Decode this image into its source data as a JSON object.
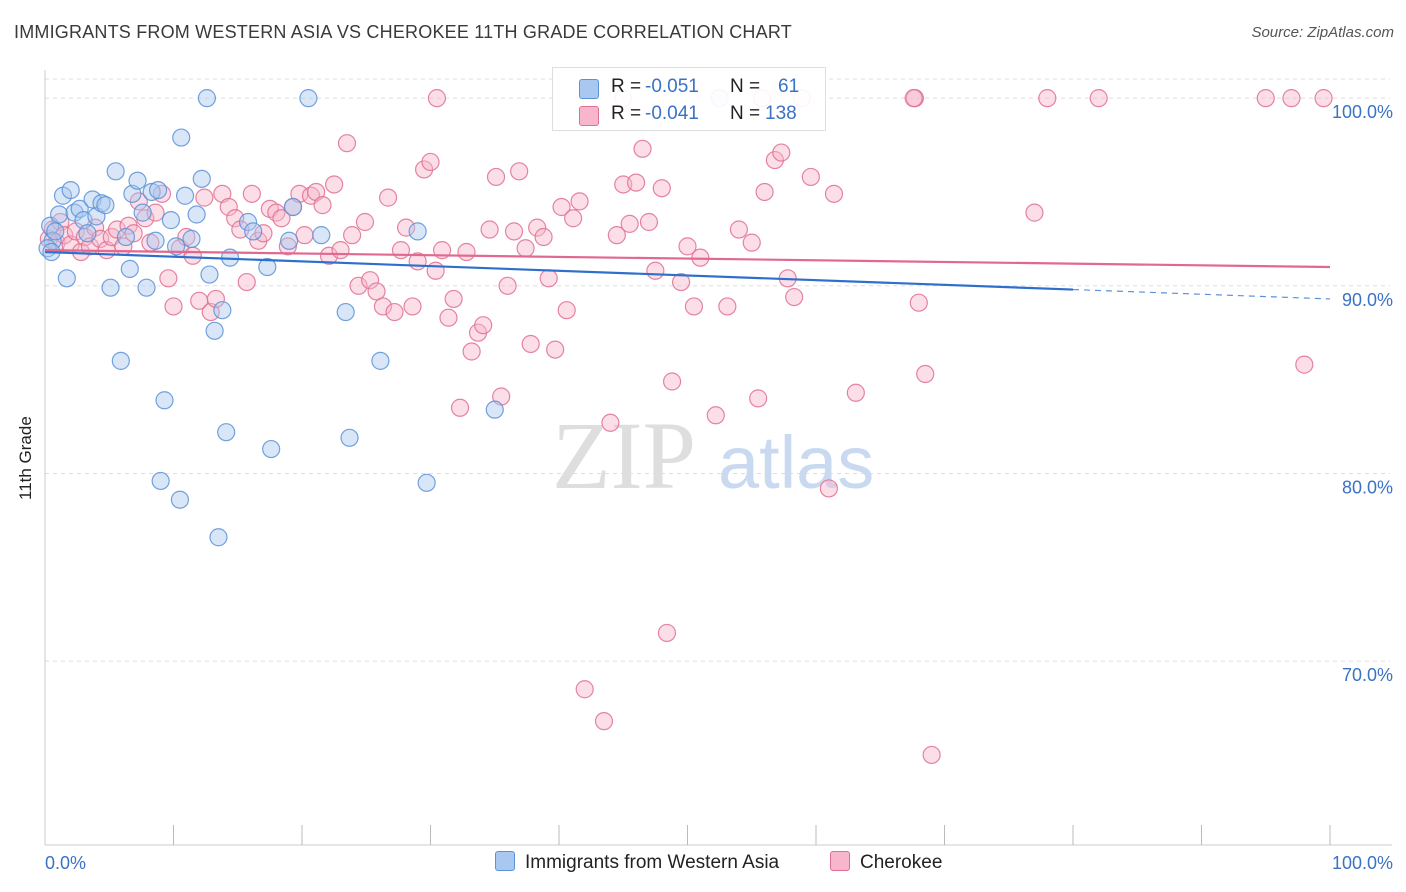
{
  "title": "IMMIGRANTS FROM WESTERN ASIA VS CHEROKEE 11TH GRADE CORRELATION CHART",
  "source": "Source: ZipAtlas.com",
  "watermark": {
    "zip": "ZIP",
    "atlas": "atlas"
  },
  "legend_top": [
    {
      "r_label": "R =",
      "r_value": "-0.051",
      "n_label": "N =",
      "n_value": "61",
      "color": "#a8c8f0"
    },
    {
      "r_label": "R =",
      "r_value": "-0.041",
      "n_label": "N =",
      "n_value": "138",
      "color": "#f7b6cc"
    }
  ],
  "legend_bottom": [
    {
      "label": "Immigrants from Western Asia",
      "color": "#a8c8f0"
    },
    {
      "label": "Cherokee",
      "color": "#f7b6cc"
    }
  ],
  "chart_data": {
    "type": "scatter",
    "title": "IMMIGRANTS FROM WESTERN ASIA VS CHEROKEE 11TH GRADE CORRELATION CHART",
    "xlabel": "",
    "ylabel": "11th Grade",
    "xlim": [
      0,
      100
    ],
    "ylim": [
      60.2,
      101.5
    ],
    "x_tick_labels": [
      "0.0%",
      "100.0%"
    ],
    "y_ticks": [
      70,
      80,
      90,
      100
    ],
    "y_tick_labels": [
      "70.0%",
      "80.0%",
      "90.0%",
      "100.0%"
    ],
    "grid": true,
    "legend_position": "top-center",
    "series": [
      {
        "name": "Immigrants from Western Asia",
        "color": "#5b92d8",
        "fill": "#a8c8f0",
        "trend": {
          "x": [
            0,
            80
          ],
          "y": [
            91.8,
            89.8
          ],
          "dash_to": [
            100,
            89.3
          ]
        },
        "points": [
          [
            0.4,
            93.2
          ],
          [
            0.6,
            92.4
          ],
          [
            0.8,
            92.9
          ],
          [
            1.1,
            93.8
          ],
          [
            1.4,
            94.8
          ],
          [
            1.7,
            90.4
          ],
          [
            2.0,
            95.1
          ],
          [
            2.3,
            93.9
          ],
          [
            2.7,
            94.1
          ],
          [
            3.0,
            93.5
          ],
          [
            3.3,
            92.8
          ],
          [
            3.7,
            94.6
          ],
          [
            4.0,
            93.7
          ],
          [
            4.4,
            94.4
          ],
          [
            4.7,
            94.3
          ],
          [
            5.1,
            89.9
          ],
          [
            5.5,
            96.1
          ],
          [
            5.9,
            86.0
          ],
          [
            6.3,
            92.6
          ],
          [
            6.6,
            90.9
          ],
          [
            6.8,
            94.9
          ],
          [
            7.2,
            95.6
          ],
          [
            7.6,
            93.9
          ],
          [
            7.9,
            89.9
          ],
          [
            8.3,
            95.0
          ],
          [
            8.6,
            92.4
          ],
          [
            8.8,
            95.1
          ],
          [
            9.0,
            79.6
          ],
          [
            9.3,
            83.9
          ],
          [
            9.8,
            93.5
          ],
          [
            10.2,
            92.1
          ],
          [
            10.5,
            78.6
          ],
          [
            10.6,
            97.9
          ],
          [
            10.9,
            94.8
          ],
          [
            11.4,
            92.5
          ],
          [
            11.8,
            93.8
          ],
          [
            12.2,
            95.7
          ],
          [
            12.6,
            100.0
          ],
          [
            12.8,
            90.6
          ],
          [
            13.2,
            87.6
          ],
          [
            13.5,
            76.6
          ],
          [
            13.8,
            88.7
          ],
          [
            14.1,
            82.2
          ],
          [
            14.4,
            91.5
          ],
          [
            15.8,
            93.4
          ],
          [
            16.2,
            92.9
          ],
          [
            17.3,
            91.0
          ],
          [
            17.6,
            81.3
          ],
          [
            19.0,
            92.4
          ],
          [
            19.3,
            94.2
          ],
          [
            20.5,
            100.0
          ],
          [
            21.5,
            92.7
          ],
          [
            23.4,
            88.6
          ],
          [
            23.7,
            81.9
          ],
          [
            26.1,
            86.0
          ],
          [
            29.0,
            92.9
          ],
          [
            29.7,
            79.5
          ],
          [
            35.0,
            83.4
          ],
          [
            52.5,
            100.0
          ],
          [
            0.2,
            92.0
          ],
          [
            0.5,
            91.8
          ]
        ]
      },
      {
        "name": "Cherokee",
        "color": "#e0708f",
        "fill": "#f7b6cc",
        "trend": {
          "x": [
            0,
            100
          ],
          "y": [
            91.9,
            91.0
          ]
        },
        "points": [
          [
            0.3,
            92.5
          ],
          [
            0.6,
            93.0
          ],
          [
            0.9,
            92.3
          ],
          [
            1.2,
            93.4
          ],
          [
            1.5,
            92.7
          ],
          [
            2.0,
            92.2
          ],
          [
            2.4,
            92.9
          ],
          [
            2.8,
            91.8
          ],
          [
            3.1,
            92.6
          ],
          [
            3.5,
            92.1
          ],
          [
            3.9,
            93.1
          ],
          [
            4.3,
            92.5
          ],
          [
            4.8,
            91.9
          ],
          [
            5.2,
            92.6
          ],
          [
            5.6,
            93.0
          ],
          [
            6.1,
            92.1
          ],
          [
            6.5,
            93.2
          ],
          [
            6.9,
            92.8
          ],
          [
            7.3,
            94.5
          ],
          [
            7.8,
            93.6
          ],
          [
            8.2,
            92.3
          ],
          [
            8.6,
            93.9
          ],
          [
            9.1,
            94.9
          ],
          [
            9.6,
            90.4
          ],
          [
            10.0,
            88.9
          ],
          [
            10.5,
            92.0
          ],
          [
            11.0,
            92.6
          ],
          [
            11.5,
            91.6
          ],
          [
            12.0,
            89.2
          ],
          [
            12.4,
            94.7
          ],
          [
            12.9,
            88.6
          ],
          [
            13.3,
            89.3
          ],
          [
            13.8,
            94.9
          ],
          [
            14.3,
            94.2
          ],
          [
            14.8,
            93.6
          ],
          [
            15.2,
            93.0
          ],
          [
            15.7,
            90.2
          ],
          [
            16.1,
            94.9
          ],
          [
            16.6,
            92.4
          ],
          [
            17.0,
            92.8
          ],
          [
            17.5,
            94.1
          ],
          [
            18.0,
            93.9
          ],
          [
            18.4,
            93.6
          ],
          [
            18.9,
            92.1
          ],
          [
            19.3,
            94.2
          ],
          [
            19.8,
            94.9
          ],
          [
            20.2,
            92.7
          ],
          [
            20.7,
            94.8
          ],
          [
            21.1,
            95.0
          ],
          [
            21.6,
            94.3
          ],
          [
            22.1,
            91.6
          ],
          [
            22.5,
            95.4
          ],
          [
            23.0,
            91.9
          ],
          [
            23.5,
            97.6
          ],
          [
            23.9,
            92.7
          ],
          [
            24.4,
            90.0
          ],
          [
            24.9,
            93.4
          ],
          [
            25.3,
            90.3
          ],
          [
            25.8,
            89.7
          ],
          [
            26.3,
            88.9
          ],
          [
            26.7,
            94.7
          ],
          [
            27.2,
            88.6
          ],
          [
            27.7,
            91.9
          ],
          [
            28.1,
            93.1
          ],
          [
            28.6,
            88.9
          ],
          [
            29.0,
            91.3
          ],
          [
            29.5,
            96.2
          ],
          [
            30.0,
            96.6
          ],
          [
            30.4,
            90.8
          ],
          [
            30.9,
            91.9
          ],
          [
            31.4,
            88.3
          ],
          [
            31.8,
            89.3
          ],
          [
            32.3,
            83.5
          ],
          [
            32.8,
            91.8
          ],
          [
            33.2,
            86.5
          ],
          [
            33.7,
            87.5
          ],
          [
            34.1,
            87.9
          ],
          [
            34.6,
            93.0
          ],
          [
            35.1,
            95.8
          ],
          [
            35.5,
            84.1
          ],
          [
            36.0,
            90.0
          ],
          [
            36.5,
            92.9
          ],
          [
            36.9,
            96.1
          ],
          [
            37.4,
            92.0
          ],
          [
            37.8,
            86.9
          ],
          [
            38.3,
            93.1
          ],
          [
            38.8,
            92.6
          ],
          [
            39.2,
            90.4
          ],
          [
            39.7,
            86.6
          ],
          [
            40.2,
            94.2
          ],
          [
            40.6,
            88.7
          ],
          [
            41.1,
            93.6
          ],
          [
            41.6,
            94.5
          ],
          [
            42.0,
            68.5
          ],
          [
            43.5,
            66.8
          ],
          [
            44.0,
            82.7
          ],
          [
            44.5,
            92.7
          ],
          [
            45.0,
            95.4
          ],
          [
            45.5,
            93.3
          ],
          [
            46.0,
            95.5
          ],
          [
            46.5,
            97.3
          ],
          [
            47.0,
            93.4
          ],
          [
            47.5,
            90.8
          ],
          [
            48.0,
            95.2
          ],
          [
            48.4,
            71.5
          ],
          [
            48.8,
            84.9
          ],
          [
            49.5,
            90.2
          ],
          [
            50.0,
            92.1
          ],
          [
            50.5,
            88.9
          ],
          [
            51.0,
            91.5
          ],
          [
            52.2,
            83.1
          ],
          [
            53.1,
            88.9
          ],
          [
            54.0,
            93.0
          ],
          [
            55.0,
            92.3
          ],
          [
            55.5,
            84.0
          ],
          [
            56.0,
            95.0
          ],
          [
            56.8,
            96.7
          ],
          [
            57.3,
            97.1
          ],
          [
            57.8,
            90.4
          ],
          [
            58.3,
            89.4
          ],
          [
            58.9,
            100.0
          ],
          [
            59.6,
            95.8
          ],
          [
            61.0,
            79.2
          ],
          [
            61.4,
            94.9
          ],
          [
            63.1,
            84.3
          ],
          [
            67.7,
            100.0
          ],
          [
            68.0,
            89.1
          ],
          [
            68.5,
            85.3
          ],
          [
            69.0,
            65.0
          ],
          [
            77.0,
            93.9
          ],
          [
            78.0,
            100.0
          ],
          [
            82.0,
            100.0
          ],
          [
            95.0,
            100.0
          ],
          [
            97.0,
            100.0
          ],
          [
            98.0,
            85.8
          ],
          [
            99.5,
            100.0
          ],
          [
            30.5,
            100.0
          ],
          [
            45.0,
            100.0
          ],
          [
            55.8,
            100.0
          ],
          [
            67.6,
            100.0
          ]
        ]
      }
    ]
  }
}
